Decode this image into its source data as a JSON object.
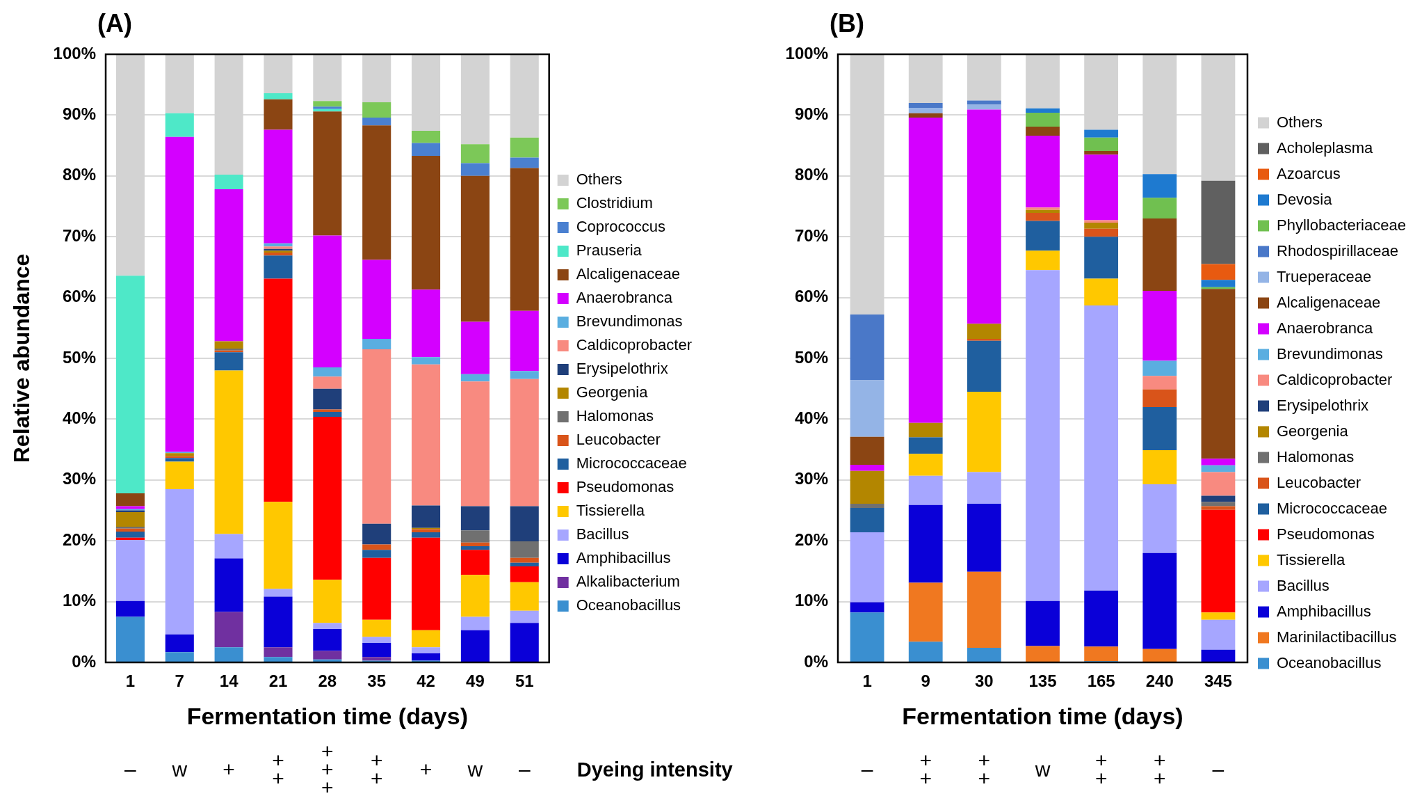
{
  "chart_data": [
    {
      "type": "bar",
      "title": "(A)",
      "xlabel": "Fermentation time (days)",
      "ylabel": "Relative abundance",
      "stacked": true,
      "legend": "right",
      "grid": "y",
      "ylim": [
        0,
        100
      ],
      "yticks": [
        {
          "value": 0,
          "label": "0%"
        },
        {
          "value": 10,
          "label": "10%"
        },
        {
          "value": 20,
          "label": "20%"
        },
        {
          "value": 30,
          "label": "30%"
        },
        {
          "value": 40,
          "label": "40%"
        },
        {
          "value": 50,
          "label": "50%"
        },
        {
          "value": 60,
          "label": "60%"
        },
        {
          "value": 70,
          "label": "70%"
        },
        {
          "value": 80,
          "label": "80%"
        },
        {
          "value": 90,
          "label": "90%"
        },
        {
          "value": 100,
          "label": "100%"
        }
      ],
      "categories": [
        "1",
        "7",
        "14",
        "21",
        "28",
        "35",
        "42",
        "49",
        "51"
      ],
      "series": [
        {
          "name": "Oceanobacillus",
          "color": "#3a8fd0",
          "values": [
            7.5,
            1.7,
            2.5,
            0.9,
            0.5,
            0.3,
            0.3,
            0,
            0
          ]
        },
        {
          "name": "Alkalibacterium",
          "color": "#7030a0",
          "values": [
            0,
            0,
            5.8,
            1.6,
            1.4,
            0.6,
            0,
            0,
            0
          ]
        },
        {
          "name": "Amphibacillus",
          "color": "#0a00d8",
          "values": [
            2.6,
            2.9,
            8.8,
            8.3,
            3.6,
            2.3,
            1.2,
            5.3,
            6.5
          ]
        },
        {
          "name": "Bacillus",
          "color": "#a6a6ff",
          "values": [
            10.0,
            23.9,
            4.0,
            1.3,
            1.0,
            1.0,
            1.0,
            2.2,
            2.0
          ]
        },
        {
          "name": "Tissierella",
          "color": "#ffc800",
          "values": [
            0,
            4.5,
            26.9,
            14.3,
            7.1,
            2.8,
            2.8,
            6.9,
            4.7
          ]
        },
        {
          "name": "Pseudomonas",
          "color": "#ff0000",
          "values": [
            0.4,
            0,
            0,
            36.7,
            26.8,
            10.2,
            15.2,
            4.1,
            2.6
          ]
        },
        {
          "name": "Micrococcaceae",
          "color": "#1f5f9f",
          "values": [
            1.0,
            0.6,
            3.0,
            3.8,
            0.8,
            1.3,
            0.9,
            0.6,
            0.6
          ]
        },
        {
          "name": "Leucobacter",
          "color": "#d9541a",
          "values": [
            0.5,
            0.3,
            0.3,
            0.5,
            0.4,
            0.9,
            0.5,
            0.6,
            0.8
          ]
        },
        {
          "name": "Halomonas",
          "color": "#707070",
          "values": [
            0.3,
            0,
            0.3,
            0,
            0,
            0,
            0,
            2.0,
            2.7
          ]
        },
        {
          "name": "Georgenia",
          "color": "#b38600",
          "values": [
            2.4,
            0.5,
            1.2,
            0.3,
            0,
            0,
            0.2,
            0,
            0
          ]
        },
        {
          "name": "Erysipelothrix",
          "color": "#1f3f7a",
          "values": [
            0.3,
            0,
            0,
            0.3,
            3.4,
            3.4,
            3.7,
            4.0,
            5.8
          ]
        },
        {
          "name": "Caldicoprobacter",
          "color": "#f88a80",
          "values": [
            0,
            0,
            0,
            0.4,
            2.0,
            28.7,
            23.2,
            20.5,
            20.9
          ]
        },
        {
          "name": "Brevundimonas",
          "color": "#5aaee0",
          "values": [
            0.2,
            0.2,
            0,
            0.5,
            1.5,
            1.7,
            1.2,
            1.2,
            1.3
          ]
        },
        {
          "name": "Anaerobranca",
          "color": "#d400ff",
          "values": [
            0.5,
            51.8,
            25.0,
            18.7,
            21.7,
            13.0,
            11.1,
            8.6,
            9.9
          ]
        },
        {
          "name": "Alcaligenaceae",
          "color": "#8b4513",
          "values": [
            2.1,
            0,
            0,
            5.0,
            20.4,
            22.1,
            22.0,
            24.0,
            23.5
          ]
        },
        {
          "name": "Prauseria",
          "color": "#4ee8c8",
          "values": [
            35.8,
            3.9,
            2.4,
            1.0,
            0.4,
            0,
            0,
            0,
            0
          ]
        },
        {
          "name": "Coprococcus",
          "color": "#4a80d0",
          "values": [
            0,
            0,
            0,
            0,
            0.4,
            1.3,
            2.1,
            2.1,
            1.7
          ]
        },
        {
          "name": "Clostridium",
          "color": "#7cc858",
          "values": [
            0,
            0,
            0,
            0,
            0.9,
            2.5,
            2.0,
            3.1,
            3.3
          ]
        },
        {
          "name": "Others",
          "color": "#d3d3d3",
          "values": [
            36.4,
            9.7,
            19.8,
            6.4,
            7.7,
            7.9,
            12.6,
            14.8,
            13.7
          ]
        }
      ],
      "annotations": [
        "–",
        "w",
        "+",
        "+\n+",
        "+\n+\n+",
        "+\n+",
        "+",
        "w",
        "–",
        "Dyeing intensity"
      ]
    },
    {
      "type": "bar",
      "title": "(B)",
      "xlabel": "Fermentation time (days)",
      "stacked": true,
      "legend": "right",
      "grid": "y",
      "ylim": [
        0,
        100
      ],
      "yticks": [
        {
          "value": 0,
          "label": "0%"
        },
        {
          "value": 10,
          "label": "10%"
        },
        {
          "value": 20,
          "label": "20%"
        },
        {
          "value": 30,
          "label": "30%"
        },
        {
          "value": 40,
          "label": "40%"
        },
        {
          "value": 50,
          "label": "50%"
        },
        {
          "value": 60,
          "label": "60%"
        },
        {
          "value": 70,
          "label": "70%"
        },
        {
          "value": 80,
          "label": "80%"
        },
        {
          "value": 90,
          "label": "90%"
        },
        {
          "value": 100,
          "label": "100%"
        }
      ],
      "categories": [
        "1",
        "9",
        "30",
        "135",
        "165",
        "240",
        "345"
      ],
      "series": [
        {
          "name": "Oceanobacillus",
          "color": "#3a8fd0",
          "values": [
            8.2,
            3.4,
            2.4,
            0,
            0.2,
            0,
            0
          ]
        },
        {
          "name": "Marinilactibacillus",
          "color": "#f07820",
          "values": [
            0,
            9.7,
            12.5,
            2.7,
            2.4,
            2.2,
            0
          ]
        },
        {
          "name": "Amphibacillus",
          "color": "#0a00d8",
          "values": [
            1.7,
            12.8,
            11.2,
            7.4,
            9.2,
            15.8,
            2.1
          ]
        },
        {
          "name": "Bacillus",
          "color": "#a6a6ff",
          "values": [
            11.5,
            4.8,
            5.2,
            54.4,
            46.9,
            11.3,
            4.9
          ]
        },
        {
          "name": "Tissierella",
          "color": "#ffc800",
          "values": [
            0,
            3.6,
            13.2,
            3.2,
            4.4,
            5.6,
            1.2
          ]
        },
        {
          "name": "Pseudomonas",
          "color": "#ff0000",
          "values": [
            0,
            0,
            0,
            0,
            0,
            0,
            16.9
          ]
        },
        {
          "name": "Micrococcaceae",
          "color": "#1f5f9f",
          "values": [
            4.0,
            2.7,
            8.4,
            4.9,
            6.9,
            7.1,
            0
          ]
        },
        {
          "name": "Leucobacter",
          "color": "#d9541a",
          "values": [
            0,
            0,
            0.3,
            1.3,
            1.3,
            2.9,
            0.6
          ]
        },
        {
          "name": "Halomonas",
          "color": "#707070",
          "values": [
            0.7,
            0,
            0,
            0,
            0,
            0,
            0.7
          ]
        },
        {
          "name": "Georgenia",
          "color": "#b38600",
          "values": [
            5.4,
            2.4,
            2.5,
            0.5,
            1.0,
            0,
            0
          ]
        },
        {
          "name": "Erysipelothrix",
          "color": "#1f3f7a",
          "values": [
            0,
            0,
            0,
            0,
            0,
            0,
            1.0
          ]
        },
        {
          "name": "Caldicoprobacter",
          "color": "#f88a80",
          "values": [
            0,
            0,
            0,
            0.4,
            0.4,
            2.2,
            3.9
          ]
        },
        {
          "name": "Brevundimonas",
          "color": "#5aaee0",
          "values": [
            0,
            0,
            0,
            0,
            0,
            2.5,
            1.1
          ]
        },
        {
          "name": "Anaerobranca",
          "color": "#d400ff",
          "values": [
            1.0,
            50.2,
            35.2,
            11.8,
            10.8,
            11.5,
            1.1
          ]
        },
        {
          "name": "Alcaligenaceae",
          "color": "#8b4513",
          "values": [
            4.6,
            0.7,
            0,
            1.5,
            0.6,
            11.9,
            27.9
          ]
        },
        {
          "name": "Trueperaceae",
          "color": "#94b4e6",
          "values": [
            9.3,
            0.9,
            0.8,
            0,
            0,
            0,
            0
          ]
        },
        {
          "name": "Rhodospirillaceae",
          "color": "#4a78c8",
          "values": [
            10.8,
            0.8,
            0.7,
            0,
            0,
            0,
            0
          ]
        },
        {
          "name": "Phyllobacteriaceae",
          "color": "#70c050",
          "values": [
            0,
            0,
            0,
            2.3,
            2.2,
            3.4,
            0.3
          ]
        },
        {
          "name": "Devosia",
          "color": "#1e7ad0",
          "values": [
            0,
            0,
            0,
            0.7,
            1.3,
            3.9,
            1.2
          ]
        },
        {
          "name": "Azoarcus",
          "color": "#e85a10",
          "values": [
            0,
            0,
            0,
            0,
            0,
            0,
            2.6
          ]
        },
        {
          "name": "Acholeplasma",
          "color": "#606060",
          "values": [
            0,
            0,
            0,
            0,
            0,
            0,
            13.7
          ]
        },
        {
          "name": "Others",
          "color": "#d3d3d3",
          "values": [
            42.8,
            8.0,
            7.6,
            8.9,
            12.4,
            19.7,
            20.8
          ]
        }
      ],
      "annotations": [
        "–",
        "+\n+",
        "+\n+",
        "w",
        "+\n+",
        "+\n+",
        "–"
      ]
    }
  ]
}
